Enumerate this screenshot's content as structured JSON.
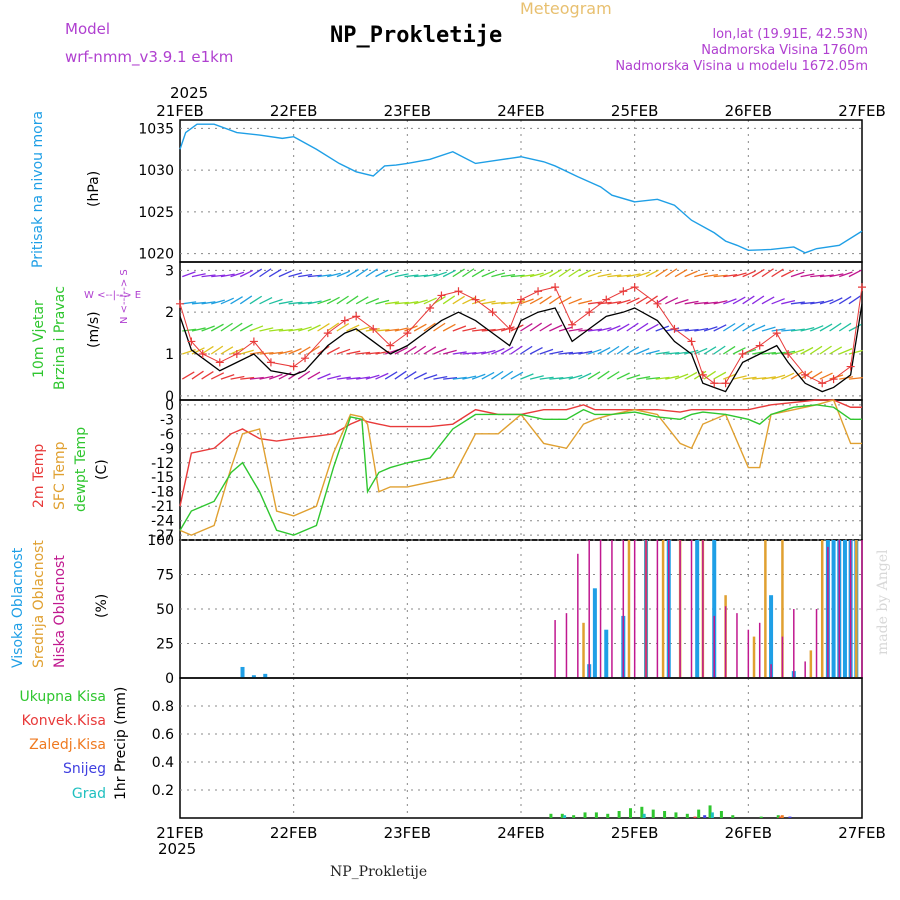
{
  "header": {
    "model_label": "Model",
    "model_name": "wrf-nmm_v3.9.1 e1km",
    "title": "NP_Prokletije",
    "subtitle": "Meteogram",
    "coords": "lon,lat (19.91E, 42.53N)",
    "elevation": "Nadmorska Visina 1760m",
    "model_elevation": "Nadmorska Visina u modelu 1672.05m",
    "footer_station": "NP_Prokletije",
    "made_by": "made by Angel"
  },
  "colors": {
    "pressure": "#1f9fe6",
    "temp_2m": "#e83a3a",
    "temp_sfc": "#e0a030",
    "dewpoint": "#2fc62f",
    "high_cloud": "#1f9fe6",
    "mid_cloud": "#e0a030",
    "low_cloud": "#c0188f",
    "precip_total": "#2fc62f",
    "precip_conv": "#e83a3a",
    "precip_ice": "#ef7a20",
    "snow": "#4040e0",
    "graupel": "#20c0c0",
    "wind_line": "#000000",
    "gust_marker": "#e83a3a",
    "purple_text": "#b040d0",
    "meteogram_text": "#e8c070",
    "made_by_text": "#d8d8d8"
  },
  "x_axis": {
    "year": "2025",
    "ticks": [
      "21FEB",
      "22FEB",
      "23FEB",
      "24FEB",
      "25FEB",
      "26FEB",
      "27FEB"
    ]
  },
  "panel_labels": {
    "pressure": {
      "title": "Pritisak na nivou mora",
      "unit": "(hPa)"
    },
    "wind": {
      "line1": "10m Vjetar",
      "line2": "Brzina i Pravac",
      "unit": "(m/s)",
      "compass_ns": "N <--|--> S",
      "compass_we": "W <--|--> E"
    },
    "temp": {
      "t2m": "2m Temp",
      "sfc": "SFC Temp",
      "dew": "dewpt Temp",
      "unit": "(C)"
    },
    "cloud": {
      "high": "Visoka Oblacnost",
      "mid": "Srednja Oblacnost",
      "low": "Niska Oblacnost",
      "unit": "(%)"
    },
    "precip": {
      "total": "Ukupna Kisa",
      "conv": "Konvek.Kisa",
      "ice": "Zaledj.Kisa",
      "snow": "Snijeg",
      "graupel": "Grad",
      "unit": "1hr Precip (mm)"
    }
  },
  "chart_data": [
    {
      "type": "line",
      "name": "pressure",
      "ylim": [
        1019,
        1036
      ],
      "yticks": [
        1020,
        1025,
        1030,
        1035
      ],
      "x": [
        0,
        0.05,
        0.15,
        0.3,
        0.5,
        0.7,
        0.9,
        1.0,
        1.2,
        1.4,
        1.55,
        1.7,
        1.8,
        1.9,
        2.0,
        2.2,
        2.4,
        2.5,
        2.6,
        2.8,
        3.0,
        3.2,
        3.3,
        3.5,
        3.7,
        3.8,
        4.0,
        4.2,
        4.35,
        4.5,
        4.7,
        4.8,
        4.9,
        5.0,
        5.2,
        5.4,
        5.5,
        5.6,
        5.8,
        6.0
      ],
      "series": [
        {
          "values": [
            1032.5,
            1034.5,
            1035.5,
            1035.5,
            1034.5,
            1034.2,
            1033.8,
            1034.0,
            1032.5,
            1030.8,
            1029.8,
            1029.3,
            1030.5,
            1030.6,
            1030.8,
            1031.3,
            1032.2,
            1031.5,
            1030.8,
            1031.2,
            1031.6,
            1031.0,
            1030.5,
            1029.2,
            1028.0,
            1027.0,
            1026.2,
            1026.5,
            1025.8,
            1024.0,
            1022.5,
            1021.5,
            1021.0,
            1020.4,
            1020.5,
            1020.8,
            1020.1,
            1020.6,
            1021.0,
            1022.7
          ]
        }
      ]
    },
    {
      "type": "line",
      "name": "wind",
      "ylim": [
        -0.1,
        3.2
      ],
      "yticks": [
        0,
        1,
        2,
        3
      ],
      "x": [
        0,
        0.1,
        0.2,
        0.35,
        0.5,
        0.65,
        0.8,
        1.0,
        1.1,
        1.3,
        1.45,
        1.55,
        1.7,
        1.85,
        2.0,
        2.2,
        2.3,
        2.45,
        2.6,
        2.75,
        2.9,
        3.0,
        3.15,
        3.3,
        3.45,
        3.6,
        3.75,
        3.9,
        4.0,
        4.2,
        4.35,
        4.5,
        4.6,
        4.7,
        4.8,
        4.95,
        5.1,
        5.25,
        5.35,
        5.5,
        5.65,
        5.75,
        5.9,
        6.0
      ],
      "series": [
        {
          "values": [
            1.9,
            1.1,
            0.9,
            0.6,
            0.8,
            1.0,
            0.6,
            0.5,
            0.6,
            1.2,
            1.5,
            1.6,
            1.3,
            1.0,
            1.2,
            1.6,
            1.8,
            2.0,
            1.8,
            1.5,
            1.2,
            1.8,
            2.0,
            2.1,
            1.3,
            1.6,
            1.9,
            2.0,
            2.1,
            1.8,
            1.3,
            1.0,
            0.3,
            0.2,
            0.1,
            0.8,
            1.0,
            1.2,
            0.8,
            0.3,
            0.1,
            0.2,
            0.5,
            2.2
          ]
        },
        {
          "values": [
            2.2,
            1.3,
            1.0,
            0.8,
            1.0,
            1.3,
            0.8,
            0.7,
            0.9,
            1.5,
            1.8,
            1.9,
            1.6,
            1.2,
            1.5,
            2.1,
            2.4,
            2.5,
            2.3,
            2.0,
            1.6,
            2.3,
            2.5,
            2.6,
            1.7,
            2.0,
            2.3,
            2.5,
            2.6,
            2.2,
            1.6,
            1.3,
            0.5,
            0.3,
            0.3,
            1.0,
            1.2,
            1.5,
            1.0,
            0.5,
            0.3,
            0.4,
            0.7,
            2.6
          ]
        }
      ]
    },
    {
      "type": "line",
      "name": "temperature",
      "ylim": [
        -28,
        1
      ],
      "yticks": [
        0,
        -3,
        -6,
        -9,
        -12,
        -15,
        -18,
        -21,
        -24,
        -27
      ],
      "x": [
        0,
        0.1,
        0.3,
        0.45,
        0.55,
        0.7,
        0.85,
        1.0,
        1.2,
        1.35,
        1.5,
        1.6,
        1.65,
        1.75,
        1.85,
        2.0,
        2.2,
        2.4,
        2.6,
        2.8,
        3.0,
        3.2,
        3.4,
        3.55,
        3.65,
        3.8,
        4.0,
        4.2,
        4.4,
        4.5,
        4.6,
        4.8,
        5.0,
        5.1,
        5.2,
        5.4,
        5.6,
        5.75,
        5.9,
        6.0
      ],
      "series": [
        {
          "values": [
            -21,
            -10,
            -9,
            -6,
            -5,
            -7,
            -7.5,
            -7,
            -6.5,
            -6,
            -4,
            -3,
            -3.5,
            -4,
            -4.5,
            -4.5,
            -4.5,
            -4,
            -1,
            -2,
            -2,
            -1,
            -1,
            0,
            -1,
            -1,
            -1,
            -1,
            -1.5,
            -1,
            -1,
            -1,
            -1,
            -0.5,
            0,
            0.5,
            1,
            1,
            -0.5,
            -0.5
          ]
        },
        {
          "values": [
            -26,
            -27,
            -25,
            -13,
            -6,
            -5,
            -22,
            -23,
            -21,
            -10,
            -2,
            -2.5,
            -4,
            -18,
            -17,
            -17,
            -16,
            -15,
            -6,
            -6,
            -2,
            -8,
            -9,
            -4,
            -3,
            -2,
            -1,
            -2,
            -8,
            -9,
            -4,
            -2,
            -13,
            -13,
            -2,
            -1,
            0,
            1,
            -8,
            -8
          ]
        },
        {
          "values": [
            -26,
            -22,
            -20,
            -14,
            -12,
            -18,
            -26,
            -27,
            -25,
            -13,
            -2.5,
            -3,
            -18,
            -14,
            -13,
            -12,
            -11,
            -5,
            -2,
            -2,
            -2,
            -3,
            -3,
            -1,
            -2,
            -2,
            -1.5,
            -2.5,
            -3,
            -2,
            -1.5,
            -2,
            -3,
            -4,
            -2,
            -0.5,
            0,
            -0.5,
            -3,
            -3
          ]
        }
      ]
    },
    {
      "type": "bar",
      "name": "cloud_cover",
      "ylim": [
        0,
        100
      ],
      "yticks": [
        0,
        25,
        50,
        75,
        100
      ],
      "series": [
        {
          "x": [
            0.55,
            0.65,
            0.75,
            3.6,
            3.65,
            3.75,
            3.9,
            4.1,
            4.3,
            4.55,
            4.7,
            5.2,
            5.4,
            5.7,
            5.75,
            5.8,
            5.85,
            5.9,
            5.95
          ],
          "values": [
            8,
            2,
            3,
            10,
            65,
            35,
            45,
            100,
            100,
            100,
            100,
            60,
            5,
            100,
            100,
            100,
            100,
            100,
            100
          ]
        },
        {
          "x": [
            3.55,
            3.95,
            4.1,
            4.25,
            4.4,
            4.6,
            4.8,
            5.05,
            5.15,
            5.3,
            5.55,
            5.65,
            5.95
          ],
          "values": [
            40,
            100,
            100,
            100,
            100,
            100,
            60,
            30,
            100,
            100,
            20,
            100,
            100
          ]
        },
        {
          "x": [
            3.0,
            3.1,
            3.2,
            3.3,
            3.4,
            3.5,
            3.6,
            3.7,
            3.8,
            3.9,
            4.0,
            4.1,
            4.2,
            4.3,
            4.4,
            4.5,
            4.6,
            4.7,
            4.8,
            4.9,
            5.0,
            5.1,
            5.2,
            5.3,
            5.4,
            5.5,
            5.6,
            5.7,
            5.8,
            5.9,
            6.0
          ],
          "values": [
            0,
            0,
            0,
            42,
            47,
            90,
            100,
            100,
            100,
            100,
            100,
            100,
            100,
            100,
            100,
            100,
            100,
            45,
            52,
            47,
            35,
            40,
            10,
            30,
            50,
            12,
            50,
            95,
            100,
            100,
            100
          ]
        }
      ]
    },
    {
      "type": "bar",
      "name": "precip_1hr",
      "ylim": [
        0,
        1
      ],
      "yticks": [
        0.2,
        0.4,
        0.6,
        0.8
      ],
      "series": [
        {
          "x": [
            3.25,
            3.35,
            3.45,
            3.55,
            3.65,
            3.75,
            3.85,
            3.95,
            4.05,
            4.15,
            4.25,
            4.35,
            4.45,
            4.55,
            4.65,
            4.75,
            4.85,
            5.1,
            5.25
          ],
          "values": [
            0.03,
            0.03,
            0.02,
            0.04,
            0.04,
            0.03,
            0.05,
            0.07,
            0.08,
            0.06,
            0.05,
            0.04,
            0.03,
            0.06,
            0.09,
            0.05,
            0.02,
            0.01,
            0.02
          ]
        },
        {
          "x": [
            4.5,
            5.25
          ],
          "values": [
            0.01,
            0.01
          ]
        },
        {
          "x": [
            5.25
          ],
          "values": [
            0.02
          ]
        },
        {
          "x": [
            4.55,
            5.3
          ],
          "values": [
            0.02,
            0.01
          ]
        },
        {
          "x": [
            3.3,
            4.0,
            4.6
          ],
          "values": [
            0.02,
            0.03,
            0.04
          ]
        }
      ]
    }
  ]
}
